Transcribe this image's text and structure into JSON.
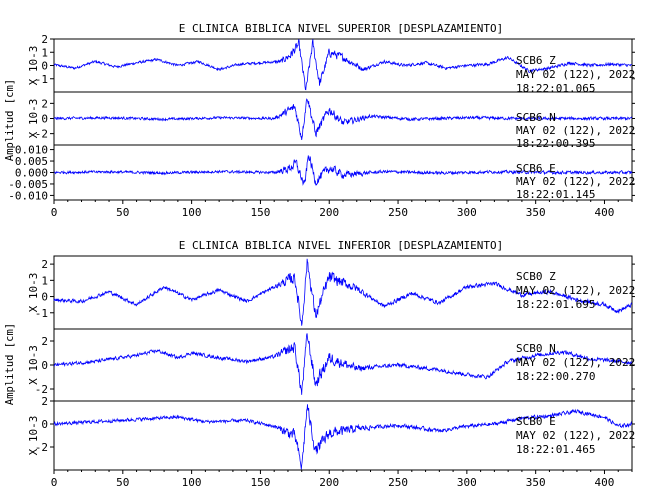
{
  "chart_data": [
    {
      "type": "line",
      "title": "E CLINICA BIBLICA NIVEL SUPERIOR [DESPLAZAMIENTO]",
      "ylabel": "Amplitud [cm]",
      "xlim": [
        0,
        420
      ],
      "x_ticks": [
        0,
        50,
        100,
        150,
        200,
        250,
        300,
        350,
        400
      ],
      "grid": false,
      "series": [
        {
          "name": "SCB6 Z",
          "date": "MAY 02 (122), 2022",
          "time": "18:22:01.065",
          "scale_label": "X 10-3",
          "ylim": [
            -2,
            2
          ],
          "y_ticks": [
            -1,
            0,
            1,
            2
          ],
          "color": "#0000ff",
          "trace": [
            [
              0,
              0.05
            ],
            [
              15,
              -0.2
            ],
            [
              30,
              0.3
            ],
            [
              45,
              -0.1
            ],
            [
              60,
              0.2
            ],
            [
              75,
              0.45
            ],
            [
              90,
              0.0
            ],
            [
              105,
              0.3
            ],
            [
              120,
              -0.3
            ],
            [
              135,
              0.1
            ],
            [
              150,
              0.2
            ],
            [
              165,
              0.3
            ],
            [
              172,
              0.8
            ],
            [
              178,
              1.6
            ],
            [
              183,
              -1.9
            ],
            [
              188,
              1.7
            ],
            [
              193,
              -1.4
            ],
            [
              200,
              1.0
            ],
            [
              210,
              0.6
            ],
            [
              225,
              -0.3
            ],
            [
              240,
              0.3
            ],
            [
              255,
              0.0
            ],
            [
              270,
              0.2
            ],
            [
              285,
              -0.2
            ],
            [
              300,
              0.0
            ],
            [
              315,
              0.1
            ],
            [
              330,
              0.6
            ],
            [
              345,
              -0.4
            ],
            [
              360,
              -0.2
            ],
            [
              375,
              0.2
            ],
            [
              390,
              0.0
            ],
            [
              405,
              0.1
            ],
            [
              420,
              0.0
            ]
          ]
        },
        {
          "name": "SCB6 N",
          "date": "MAY 02 (122), 2022",
          "time": "18:22:00.395",
          "scale_label": "X 10-3",
          "ylim": [
            -3.5,
            3.5
          ],
          "y_ticks": [
            -2,
            0,
            2
          ],
          "color": "#0000ff",
          "trace": [
            [
              0,
              0.0
            ],
            [
              40,
              0.1
            ],
            [
              80,
              -0.1
            ],
            [
              120,
              0.1
            ],
            [
              160,
              0.0
            ],
            [
              168,
              0.8
            ],
            [
              175,
              1.5
            ],
            [
              180,
              -2.5
            ],
            [
              184,
              3.0
            ],
            [
              190,
              -2.0
            ],
            [
              200,
              1.2
            ],
            [
              210,
              -0.6
            ],
            [
              230,
              0.3
            ],
            [
              260,
              -0.1
            ],
            [
              300,
              0.1
            ],
            [
              340,
              0.0
            ],
            [
              380,
              0.0
            ],
            [
              420,
              0.0
            ]
          ]
        },
        {
          "name": "SCB6 E",
          "date": "MAY 02 (122), 2022",
          "time": "18:22:01.145",
          "ylim": [
            -0.012,
            0.012
          ],
          "y_ticks": [
            -0.01,
            -0.005,
            0.0,
            0.005,
            0.01
          ],
          "y_tick_labels": [
            "-0.010",
            "-0.005",
            "0.000",
            "0.005",
            "0.010"
          ],
          "color": "#0000ff",
          "trace": [
            [
              0,
              0.0
            ],
            [
              40,
              0.0003
            ],
            [
              80,
              -0.0002
            ],
            [
              120,
              0.0004
            ],
            [
              160,
              0.0
            ],
            [
              170,
              0.0015
            ],
            [
              176,
              0.004
            ],
            [
              182,
              -0.006
            ],
            [
              185,
              0.008
            ],
            [
              190,
              -0.004
            ],
            [
              200,
              0.002
            ],
            [
              210,
              -0.001
            ],
            [
              240,
              0.0004
            ],
            [
              280,
              -0.0002
            ],
            [
              320,
              0.0003
            ],
            [
              360,
              0.0
            ],
            [
              420,
              0.0
            ]
          ]
        }
      ]
    },
    {
      "type": "line",
      "title": "E CLINICA BIBLICA NIVEL INFERIOR [DESPLAZAMIENTO]",
      "ylabel": "Amplitud [cm]",
      "xlim": [
        0,
        420
      ],
      "x_ticks": [
        0,
        50,
        100,
        150,
        200,
        250,
        300,
        350,
        400
      ],
      "grid": false,
      "series": [
        {
          "name": "SCB0 Z",
          "date": "MAY 02 (122), 2022",
          "time": "18:22:01.695",
          "scale_label": "X 10-3",
          "ylim": [
            -2,
            2.5
          ],
          "y_ticks": [
            -1,
            0,
            1,
            2
          ],
          "color": "#0000ff",
          "trace": [
            [
              0,
              -0.2
            ],
            [
              20,
              -0.3
            ],
            [
              40,
              0.3
            ],
            [
              60,
              -0.5
            ],
            [
              80,
              0.6
            ],
            [
              100,
              -0.2
            ],
            [
              120,
              0.4
            ],
            [
              140,
              -0.3
            ],
            [
              160,
              0.6
            ],
            [
              175,
              1.2
            ],
            [
              180,
              -1.8
            ],
            [
              184,
              2.2
            ],
            [
              190,
              -1.2
            ],
            [
              200,
              1.2
            ],
            [
              220,
              0.5
            ],
            [
              240,
              -0.6
            ],
            [
              260,
              0.2
            ],
            [
              280,
              -0.4
            ],
            [
              300,
              0.6
            ],
            [
              320,
              0.8
            ],
            [
              340,
              0.1
            ],
            [
              360,
              0.3
            ],
            [
              380,
              -0.2
            ],
            [
              400,
              -0.5
            ],
            [
              410,
              -0.9
            ],
            [
              420,
              -0.5
            ]
          ]
        },
        {
          "name": "SCB0 N",
          "date": "MAY 02 (122), 2022",
          "time": "18:22:00.270",
          "scale_label": "X 10-3",
          "ylim": [
            -3,
            3
          ],
          "y_ticks": [
            -2,
            0,
            2
          ],
          "color": "#0000ff",
          "trace": [
            [
              0,
              0.0
            ],
            [
              30,
              0.3
            ],
            [
              60,
              0.8
            ],
            [
              75,
              1.2
            ],
            [
              90,
              0.6
            ],
            [
              100,
              1.0
            ],
            [
              120,
              0.6
            ],
            [
              140,
              0.3
            ],
            [
              160,
              0.7
            ],
            [
              175,
              1.5
            ],
            [
              180,
              -2.4
            ],
            [
              184,
              2.6
            ],
            [
              190,
              -1.6
            ],
            [
              200,
              0.6
            ],
            [
              220,
              -0.3
            ],
            [
              250,
              0.0
            ],
            [
              280,
              -0.4
            ],
            [
              300,
              -0.8
            ],
            [
              315,
              -1.0
            ],
            [
              330,
              0.3
            ],
            [
              350,
              0.8
            ],
            [
              370,
              1.1
            ],
            [
              390,
              0.5
            ],
            [
              410,
              0.3
            ],
            [
              420,
              0.2
            ]
          ]
        },
        {
          "name": "SCB0 E",
          "date": "MAY 02 (122), 2022",
          "time": "18:22:01.465",
          "scale_label": "X 10-3",
          "ylim": [
            -4,
            2
          ],
          "y_ticks": [
            -2,
            0,
            2
          ],
          "color": "#0000ff",
          "trace": [
            [
              0,
              0.0
            ],
            [
              30,
              0.2
            ],
            [
              60,
              0.4
            ],
            [
              90,
              0.6
            ],
            [
              110,
              0.2
            ],
            [
              140,
              0.3
            ],
            [
              160,
              -0.2
            ],
            [
              175,
              -1.0
            ],
            [
              180,
              -3.8
            ],
            [
              184,
              1.6
            ],
            [
              190,
              -2.4
            ],
            [
              200,
              -0.8
            ],
            [
              220,
              -0.4
            ],
            [
              250,
              -0.1
            ],
            [
              280,
              -0.6
            ],
            [
              300,
              -0.2
            ],
            [
              320,
              0.0
            ],
            [
              340,
              0.5
            ],
            [
              360,
              0.7
            ],
            [
              380,
              1.1
            ],
            [
              400,
              0.6
            ],
            [
              410,
              -0.2
            ],
            [
              420,
              0.0
            ]
          ]
        }
      ]
    }
  ]
}
